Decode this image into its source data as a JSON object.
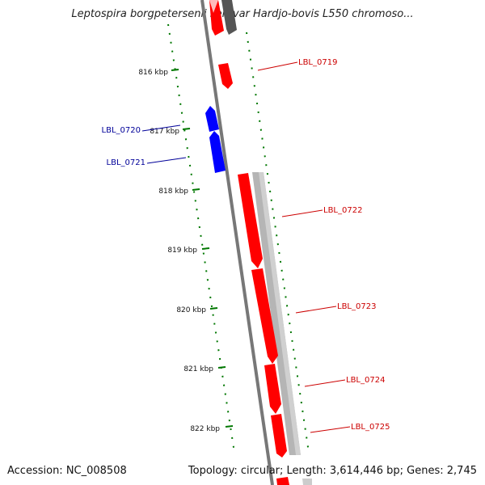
{
  "title": "Leptospira borgpetersenii serovar Hardjo-bovis L550 chromoso...",
  "footer": {
    "accession": "Accession: NC_008508",
    "topology": "Topology: circular; Length: 3,614,446 bp; Genes: 2,745"
  },
  "colors": {
    "forward_gene": "#ff0000",
    "reverse_gene": "#0000ff",
    "feature": "#aaaaaa",
    "backbone": "#777777",
    "tick": "#007700",
    "forward_label": "#cc0000",
    "reverse_label": "#000099"
  },
  "ticks": [
    "816 kbp",
    "817 kbp",
    "818 kbp",
    "819 kbp",
    "820 kbp",
    "821 kbp",
    "822 kbp"
  ],
  "genes": [
    {
      "label": "LBL_0719",
      "strand": "forward"
    },
    {
      "label": "LBL_0720",
      "strand": "reverse"
    },
    {
      "label": "LBL_0721",
      "strand": "reverse"
    },
    {
      "label": "LBL_0722",
      "strand": "forward"
    },
    {
      "label": "LBL_0723",
      "strand": "forward"
    },
    {
      "label": "LBL_0724",
      "strand": "forward"
    },
    {
      "label": "LBL_0725",
      "strand": "forward"
    }
  ]
}
